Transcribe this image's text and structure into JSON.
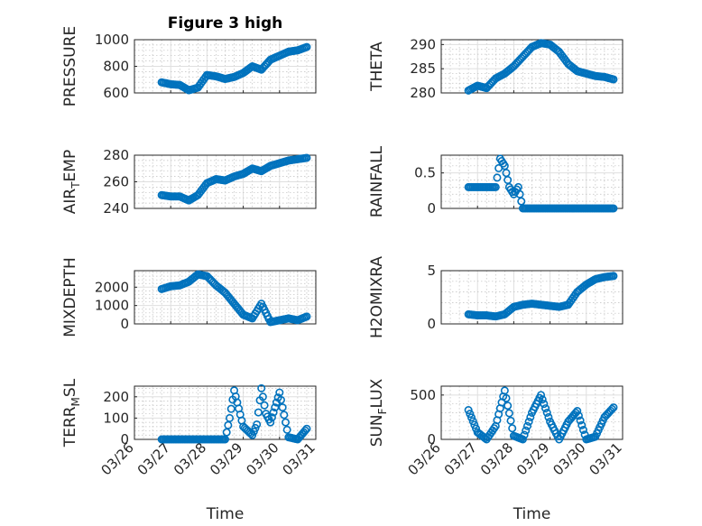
{
  "chart_data": [
    {
      "type": "scatter",
      "title": "Figure 3 high",
      "ylabel": "PRESSURE",
      "ylim": [
        600,
        1000
      ],
      "yticks": [
        "600",
        "800",
        "1000"
      ],
      "xlim": [
        "03/26",
        "03/31"
      ],
      "grid": true,
      "color": "#0072BD",
      "x": [
        "03/26 18:00",
        "03/27 00:00",
        "03/27 06:00",
        "03/27 12:00",
        "03/27 18:00",
        "03/28 00:00",
        "03/28 06:00",
        "03/28 12:00",
        "03/28 18:00",
        "03/29 00:00",
        "03/29 06:00",
        "03/29 12:00",
        "03/29 18:00",
        "03/30 00:00",
        "03/30 06:00",
        "03/30 12:00",
        "03/30 18:00"
      ],
      "y": [
        680,
        665,
        660,
        620,
        640,
        735,
        725,
        705,
        720,
        750,
        800,
        775,
        850,
        880,
        910,
        920,
        945
      ]
    },
    {
      "type": "scatter",
      "ylabel": "THETA",
      "ylim": [
        280,
        291
      ],
      "yticks": [
        "280",
        "285",
        "290"
      ],
      "xlim": [
        "03/26",
        "03/31"
      ],
      "grid": true,
      "color": "#0072BD",
      "x": [
        "03/26 18:00",
        "03/27 00:00",
        "03/27 06:00",
        "03/27 12:00",
        "03/27 18:00",
        "03/28 00:00",
        "03/28 06:00",
        "03/28 12:00",
        "03/28 18:00",
        "03/29 00:00",
        "03/29 06:00",
        "03/29 12:00",
        "03/29 18:00",
        "03/30 00:00",
        "03/30 06:00",
        "03/30 12:00",
        "03/30 18:00"
      ],
      "y": [
        280.5,
        281.5,
        281.0,
        283.0,
        284.0,
        285.5,
        287.5,
        289.5,
        290.3,
        290.0,
        288.5,
        286.0,
        284.5,
        284.0,
        283.5,
        283.3,
        282.8
      ]
    },
    {
      "type": "scatter",
      "ylabel": "AIR_TEMP",
      "ylim": [
        240,
        280
      ],
      "yticks": [
        "240",
        "260",
        "280"
      ],
      "xlim": [
        "03/26",
        "03/31"
      ],
      "grid": true,
      "color": "#0072BD",
      "x": [
        "03/26 18:00",
        "03/27 00:00",
        "03/27 06:00",
        "03/27 12:00",
        "03/27 18:00",
        "03/28 00:00",
        "03/28 06:00",
        "03/28 12:00",
        "03/28 18:00",
        "03/29 00:00",
        "03/29 06:00",
        "03/29 12:00",
        "03/29 18:00",
        "03/30 00:00",
        "03/30 06:00",
        "03/30 12:00",
        "03/30 18:00"
      ],
      "y": [
        250,
        249,
        249,
        246,
        250,
        259,
        262,
        261,
        264,
        266,
        270,
        268,
        272,
        274,
        276,
        277,
        278
      ]
    },
    {
      "type": "scatter",
      "ylabel": "RAINFALL",
      "ylim": [
        0,
        0.75
      ],
      "yticks": [
        "0",
        "0.5"
      ],
      "xlim": [
        "03/26",
        "03/31"
      ],
      "grid": true,
      "color": "#0072BD",
      "x": [
        "03/26 18:00",
        "03/27 00:00",
        "03/27 06:00",
        "03/27 12:00",
        "03/27 15:00",
        "03/27 18:00",
        "03/27 21:00",
        "03/28 00:00",
        "03/28 03:00",
        "03/28 06:00",
        "03/28 12:00",
        "03/28 18:00",
        "03/29 00:00",
        "03/29 06:00",
        "03/29 12:00",
        "03/29 18:00",
        "03/30 00:00",
        "03/30 06:00",
        "03/30 12:00",
        "03/30 18:00"
      ],
      "y": [
        0.3,
        0.3,
        0.3,
        0.3,
        0.7,
        0.6,
        0.3,
        0.2,
        0.3,
        0,
        0,
        0,
        0,
        0,
        0,
        0,
        0,
        0,
        0,
        0
      ]
    },
    {
      "type": "scatter",
      "ylabel": "MIXDEPTH",
      "ylim": [
        0,
        2900
      ],
      "yticks": [
        "0",
        "1000",
        "2000"
      ],
      "xlim": [
        "03/26",
        "03/31"
      ],
      "grid": true,
      "color": "#0072BD",
      "x": [
        "03/26 18:00",
        "03/27 00:00",
        "03/27 06:00",
        "03/27 12:00",
        "03/27 18:00",
        "03/28 00:00",
        "03/28 06:00",
        "03/28 12:00",
        "03/28 18:00",
        "03/29 00:00",
        "03/29 06:00",
        "03/29 12:00",
        "03/29 18:00",
        "03/30 00:00",
        "03/30 06:00",
        "03/30 12:00",
        "03/30 18:00"
      ],
      "y": [
        1900,
        2050,
        2100,
        2300,
        2700,
        2600,
        2100,
        1700,
        1100,
        500,
        300,
        1100,
        100,
        200,
        300,
        200,
        400
      ]
    },
    {
      "type": "scatter",
      "ylabel": "H2OMIXRA",
      "ylim": [
        0,
        5
      ],
      "yticks": [
        "0",
        "5"
      ],
      "xlim": [
        "03/26",
        "03/31"
      ],
      "grid": true,
      "color": "#0072BD",
      "x": [
        "03/26 18:00",
        "03/27 00:00",
        "03/27 06:00",
        "03/27 12:00",
        "03/27 18:00",
        "03/28 00:00",
        "03/28 06:00",
        "03/28 12:00",
        "03/28 18:00",
        "03/29 00:00",
        "03/29 06:00",
        "03/29 12:00",
        "03/29 18:00",
        "03/30 00:00",
        "03/30 06:00",
        "03/30 12:00",
        "03/30 18:00"
      ],
      "y": [
        0.9,
        0.8,
        0.8,
        0.7,
        0.9,
        1.6,
        1.8,
        1.9,
        1.8,
        1.7,
        1.6,
        1.8,
        3.0,
        3.7,
        4.2,
        4.4,
        4.5
      ]
    },
    {
      "type": "scatter",
      "ylabel": "TERR_MSL",
      "ylim": [
        0,
        250
      ],
      "yticks": [
        "0",
        "100",
        "200"
      ],
      "xlim": [
        "03/26",
        "03/31"
      ],
      "xticks": [
        "03/26",
        "03/27",
        "03/28",
        "03/29",
        "03/30",
        "03/31"
      ],
      "xlabel": "Time",
      "grid": true,
      "color": "#0072BD",
      "x": [
        "03/26 18:00",
        "03/27 00:00",
        "03/27 06:00",
        "03/27 12:00",
        "03/27 18:00",
        "03/28 00:00",
        "03/28 06:00",
        "03/28 12:00",
        "03/28 15:00",
        "03/28 18:00",
        "03/29 00:00",
        "03/29 06:00",
        "03/29 09:00",
        "03/29 12:00",
        "03/29 15:00",
        "03/29 18:00",
        "03/30 00:00",
        "03/30 06:00",
        "03/30 12:00",
        "03/30 18:00"
      ],
      "y": [
        0,
        0,
        0,
        0,
        0,
        0,
        0,
        0,
        100,
        230,
        60,
        20,
        70,
        240,
        120,
        80,
        220,
        10,
        0,
        50
      ]
    },
    {
      "type": "scatter",
      "ylabel": "SUN_FLUX",
      "ylim": [
        0,
        600
      ],
      "yticks": [
        "0",
        "500"
      ],
      "xlim": [
        "03/26",
        "03/31"
      ],
      "xticks": [
        "03/26",
        "03/27",
        "03/28",
        "03/29",
        "03/30",
        "03/31"
      ],
      "xlabel": "Time",
      "grid": true,
      "color": "#0072BD",
      "x": [
        "03/26 18:00",
        "03/27 00:00",
        "03/27 06:00",
        "03/27 12:00",
        "03/27 18:00",
        "03/28 00:00",
        "03/28 06:00",
        "03/28 12:00",
        "03/28 18:00",
        "03/29 00:00",
        "03/29 06:00",
        "03/29 12:00",
        "03/29 18:00",
        "03/30 00:00",
        "03/30 06:00",
        "03/30 12:00",
        "03/30 18:00"
      ],
      "y": [
        330,
        80,
        0,
        150,
        550,
        40,
        0,
        300,
        500,
        200,
        0,
        200,
        320,
        0,
        30,
        250,
        360
      ]
    }
  ]
}
